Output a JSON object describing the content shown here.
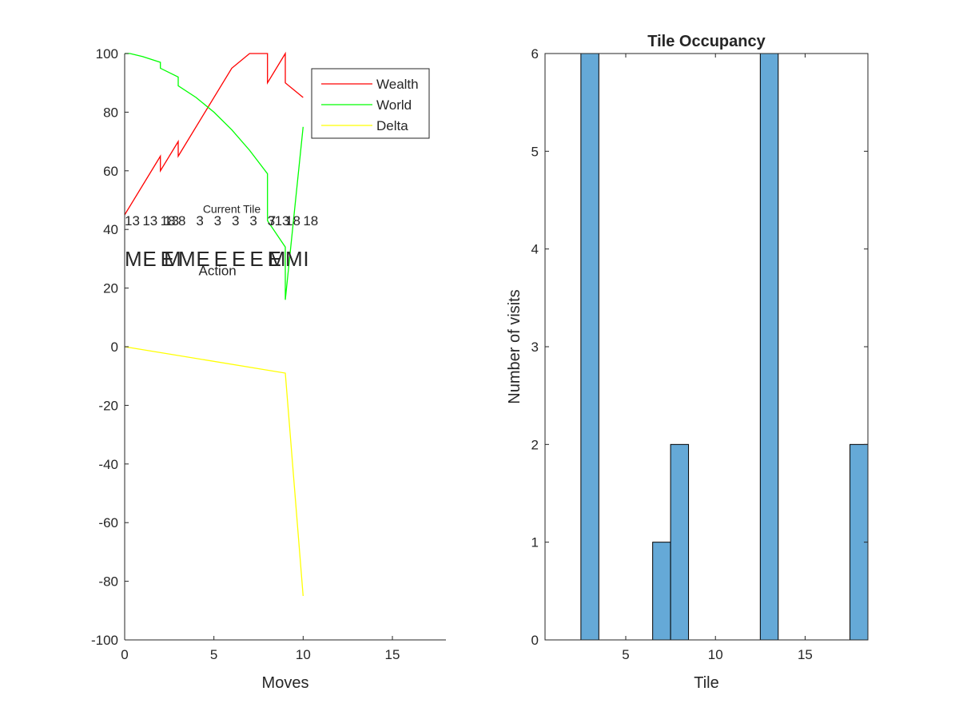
{
  "chart_data": [
    {
      "type": "line",
      "title": "",
      "xlabel": "Moves",
      "ylabel": "",
      "xlim": [
        0,
        18
      ],
      "ylim": [
        -100,
        100
      ],
      "xticks": [
        "0",
        "5",
        "10",
        "15"
      ],
      "yticks": [
        "100",
        "80",
        "60",
        "40",
        "20",
        "0",
        "-20",
        "-40",
        "-60",
        "-80",
        "-100"
      ],
      "grid": false,
      "legend_position": "top-right",
      "series": [
        {
          "name": "Wealth",
          "color": "#ff0000",
          "x": [
            0,
            2,
            2,
            3,
            3,
            6,
            7,
            8,
            8,
            9,
            9,
            10
          ],
          "y": [
            45,
            65,
            60,
            70,
            65,
            95,
            100,
            100,
            90,
            100,
            90,
            85
          ]
        },
        {
          "name": "World",
          "color": "#00ff00",
          "x": [
            0,
            0.3,
            1,
            2,
            2,
            3,
            3,
            4,
            5,
            6,
            7,
            8,
            8,
            9,
            9,
            10
          ],
          "y": [
            100,
            100,
            99,
            97,
            95,
            92,
            89,
            85,
            80,
            74,
            67,
            59,
            43,
            34,
            16,
            75
          ]
        },
        {
          "name": "Delta",
          "color": "#ffff00",
          "x": [
            0,
            9,
            10
          ],
          "y": [
            0,
            -9,
            -85
          ]
        }
      ],
      "annotations": {
        "tile_header": "Current Tile",
        "action_header": "Action",
        "tile_labels": [
          {
            "text": "13",
            "x": 0
          },
          {
            "text": "13",
            "x": 1
          },
          {
            "text": "18",
            "x": 2
          },
          {
            "text": "13",
            "x": 2.2
          },
          {
            "text": "8",
            "x": 3
          },
          {
            "text": "3",
            "x": 4
          },
          {
            "text": "3",
            "x": 5
          },
          {
            "text": "3",
            "x": 6
          },
          {
            "text": "3",
            "x": 7
          },
          {
            "text": "3",
            "x": 8
          },
          {
            "text": "7",
            "x": 8.05
          },
          {
            "text": "13",
            "x": 8.4
          },
          {
            "text": "18",
            "x": 9
          },
          {
            "text": "18",
            "x": 10
          }
        ],
        "action_labels": [
          {
            "text": "M",
            "x": 0
          },
          {
            "text": "E",
            "x": 1
          },
          {
            "text": "E",
            "x": 2
          },
          {
            "text": "M",
            "x": 2.2
          },
          {
            "text": "M",
            "x": 3
          },
          {
            "text": "E",
            "x": 4
          },
          {
            "text": "E",
            "x": 5
          },
          {
            "text": "E",
            "x": 6
          },
          {
            "text": "E",
            "x": 7
          },
          {
            "text": "E",
            "x": 8
          },
          {
            "text": "M",
            "x": 8.05
          },
          {
            "text": "M",
            "x": 9
          },
          {
            "text": "I",
            "x": 10
          }
        ]
      }
    },
    {
      "type": "bar",
      "title": "Tile Occupancy",
      "xlabel": "Tile",
      "ylabel": "Number of visits",
      "xlim": [
        0.5,
        18.5
      ],
      "ylim": [
        0,
        6
      ],
      "xticks": [
        "5",
        "10",
        "15"
      ],
      "yticks": [
        "0",
        "1",
        "2",
        "3",
        "4",
        "5",
        "6"
      ],
      "bar_color": "#65a9d7",
      "bars": [
        {
          "tile": 3,
          "value": 6
        },
        {
          "tile": 7,
          "value": 1
        },
        {
          "tile": 8,
          "value": 2
        },
        {
          "tile": 13,
          "value": 6
        },
        {
          "tile": 18,
          "value": 2
        }
      ]
    }
  ]
}
